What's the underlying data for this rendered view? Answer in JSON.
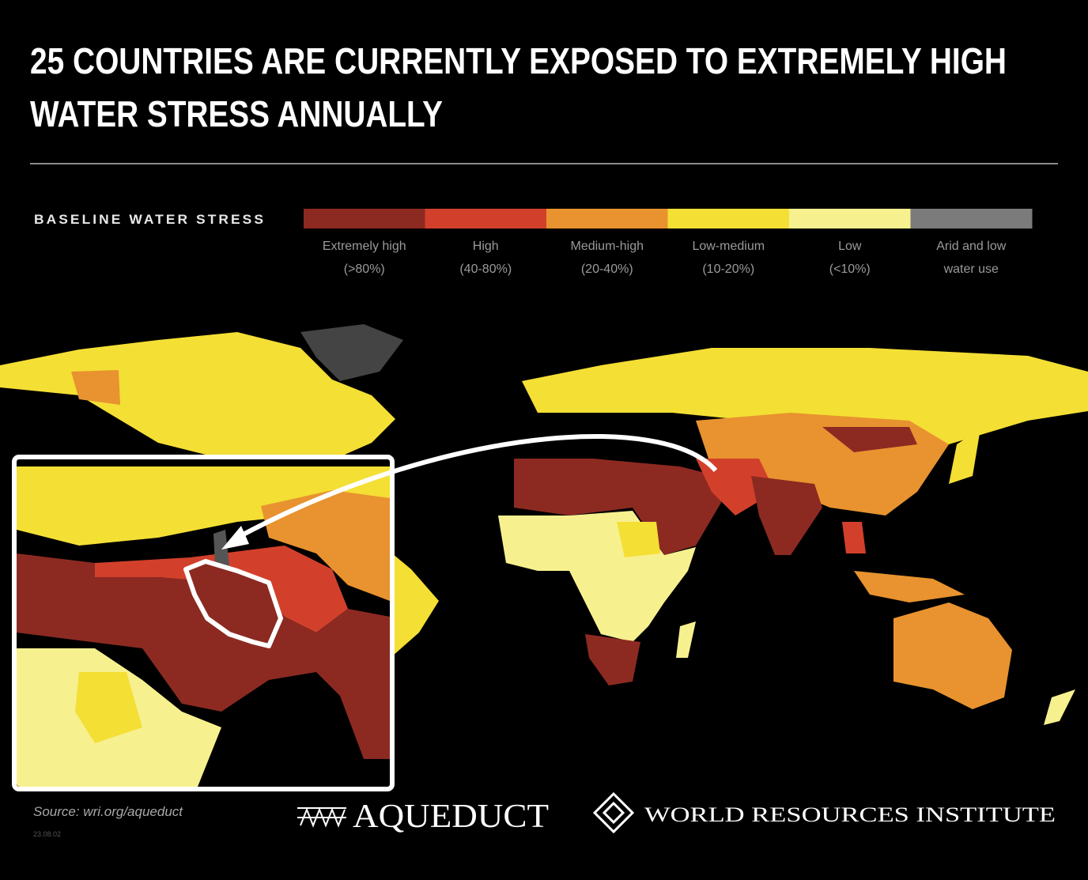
{
  "header": {
    "title_lines": [
      "25 COUNTRIES ARE CURRENTLY EXPOSED TO EXTREMELY HIGH",
      "WATER STRESS ANNUALLY"
    ]
  },
  "legend": {
    "title": "BASELINE WATER STRESS",
    "items": [
      {
        "label_lines": [
          "Extremely high",
          "(>80%)"
        ],
        "color": "#8c2a22"
      },
      {
        "label_lines": [
          "High",
          "(40-80%)"
        ],
        "color": "#d2402b"
      },
      {
        "label_lines": [
          "Medium-high",
          "(20-40%)"
        ],
        "color": "#e8932f"
      },
      {
        "label_lines": [
          "Low-medium",
          "(10-20%)"
        ],
        "color": "#f4df34"
      },
      {
        "label_lines": [
          "Low",
          "(<10%)"
        ],
        "color": "#f7f08f"
      },
      {
        "label_lines": [
          "Arid and low",
          "water use"
        ],
        "color": "#7b7b7b"
      }
    ]
  },
  "footer": {
    "source": "Source: wri.org/aqueduct",
    "date": "23.08.02",
    "logo_aqueduct": "AQUEDUCT",
    "logo_wri": "WORLD RESOURCES INSTITUTE"
  }
}
